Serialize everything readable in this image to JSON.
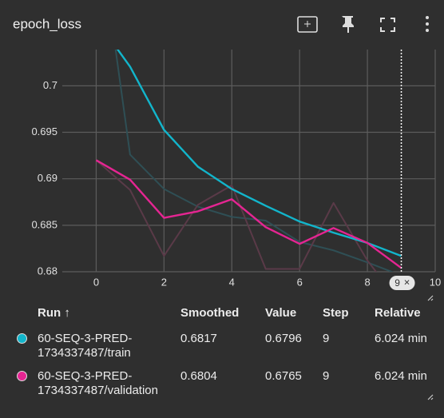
{
  "title": "epoch_loss",
  "chart_data": {
    "type": "line",
    "x": [
      0,
      1,
      2,
      3,
      4,
      5,
      6,
      7,
      8,
      9
    ],
    "series": [
      {
        "color": "#12b5cb",
        "raw_color": "#2f4f55",
        "values": [
          0.719,
          0.6926,
          0.6889,
          0.687,
          0.6859,
          0.6855,
          0.6832,
          0.6823,
          0.681,
          0.6796
        ],
        "smoothed": [
          0.7071,
          0.70206,
          0.69526,
          0.6913,
          0.6889,
          0.6871,
          0.6854,
          0.6842,
          0.6831,
          0.6817
        ]
      },
      {
        "color": "#e52592",
        "raw_color": "#5a3a48",
        "values": [
          0.692,
          0.6888,
          0.6817,
          0.6872,
          0.6893,
          0.6803,
          0.6803,
          0.6874,
          0.6812,
          0.6765
        ],
        "smoothed": [
          0.692,
          0.6899,
          0.6858,
          0.6865,
          0.6878,
          0.6848,
          0.683,
          0.6847,
          0.6831,
          0.6804
        ]
      }
    ],
    "xlim": [
      -1,
      10
    ],
    "xticks": [
      0,
      2,
      4,
      6,
      8,
      10
    ],
    "ylim": [
      0.68,
      0.7039
    ],
    "yticks": [
      0.68,
      0.685,
      0.69,
      0.695,
      0.7
    ],
    "grid": true,
    "hover_x": 9,
    "hover_close": "×"
  },
  "table": {
    "headers": [
      "Run ↑",
      "Smoothed",
      "Value",
      "Step",
      "Relative"
    ],
    "rows": [
      [
        "60-SEQ-3-PRED-1734337487/train",
        0.6817,
        0.6796,
        9,
        "6.024 min"
      ],
      [
        "60-SEQ-3-PRED-1734337487/validation",
        0.6804,
        0.6765,
        9,
        "6.024 min"
      ]
    ]
  }
}
